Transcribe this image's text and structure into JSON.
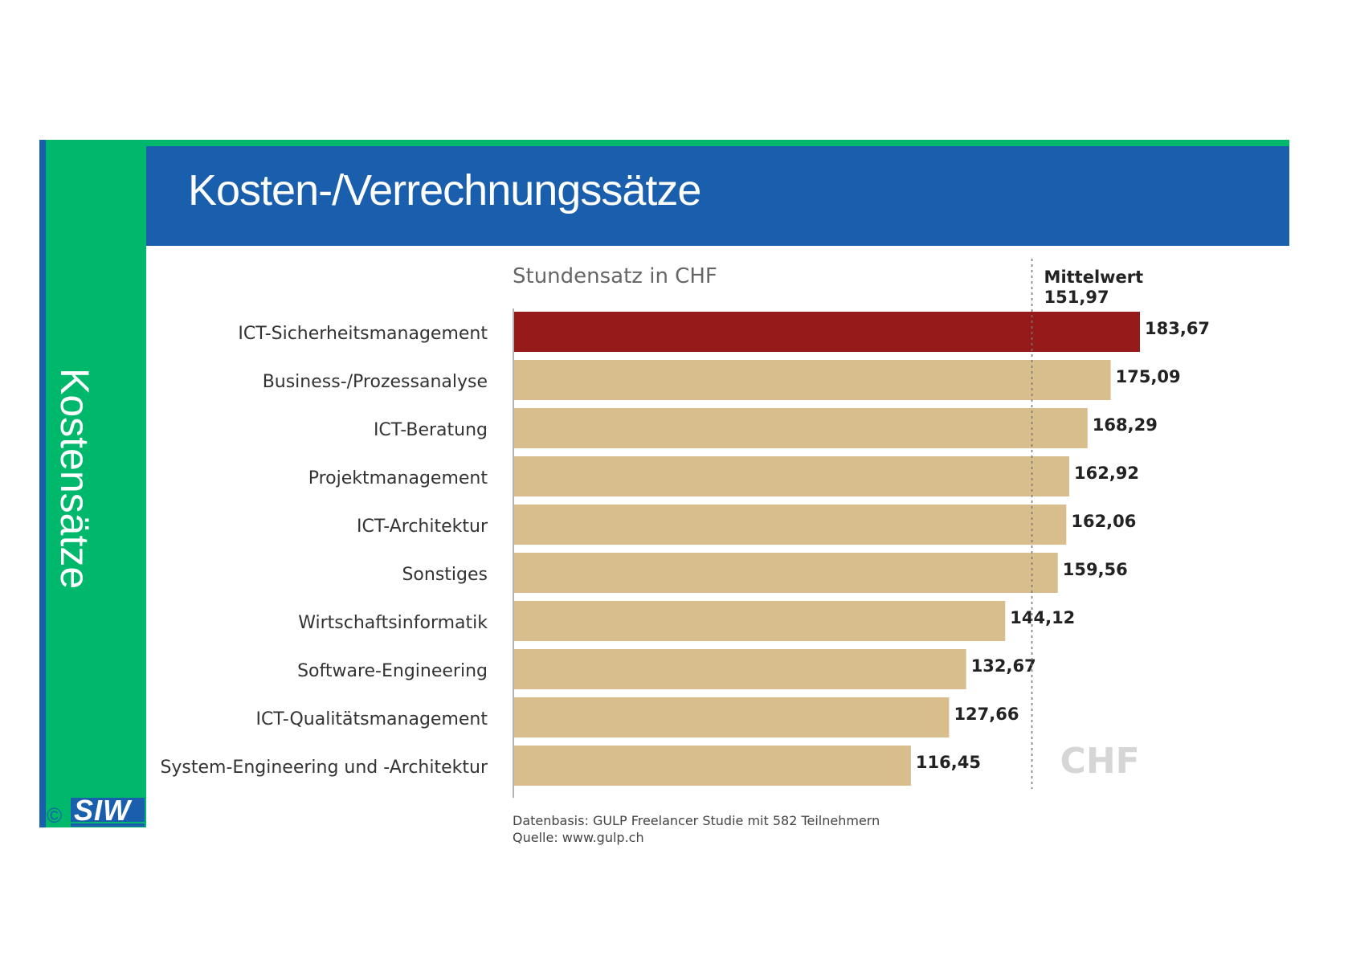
{
  "slide": {
    "title": "Kosten-/Verrechnungssätze",
    "sidebar_label": "Kostensätze",
    "logo_copyright": "©",
    "logo_text": "SIW"
  },
  "colors": {
    "blue": "#1a5fad",
    "green": "#00b86b",
    "bar_default": "#d8be8c",
    "bar_highlight": "#971a1a"
  },
  "chart_data": {
    "type": "bar",
    "orientation": "horizontal",
    "title": "Stundensatz in CHF",
    "unit_watermark": "CHF",
    "categories": [
      "ICT-Sicherheitsmanagement",
      "Business-/Prozessanalyse",
      "ICT-Beratung",
      "Projektmanagement",
      "ICT-Architektur",
      "Sonstiges",
      "Wirtschaftsinformatik",
      "Software-Engineering",
      "ICT-Qualitätsmanagement",
      "System-Engineering und -Architektur"
    ],
    "values": [
      183.67,
      175.09,
      168.29,
      162.92,
      162.06,
      159.56,
      144.12,
      132.67,
      127.66,
      116.45
    ],
    "value_labels": [
      "183,67",
      "175,09",
      "168,29",
      "162,92",
      "162,06",
      "159,56",
      "144,12",
      "132,67",
      "127,66",
      "116,45"
    ],
    "highlight_index": 0,
    "reference_line": {
      "label": "Mittelwert",
      "value": 151.97,
      "value_label": "151,97",
      "style": "dotted"
    },
    "xlim": [
      0,
      183.67
    ],
    "xlabel": "",
    "ylabel": "",
    "grid": false,
    "legend": "none",
    "source": {
      "data_basis": "Datenbasis: GULP Freelancer Studie mit 582 Teilnehmern",
      "source_line": "Quelle: www.gulp.ch"
    }
  }
}
